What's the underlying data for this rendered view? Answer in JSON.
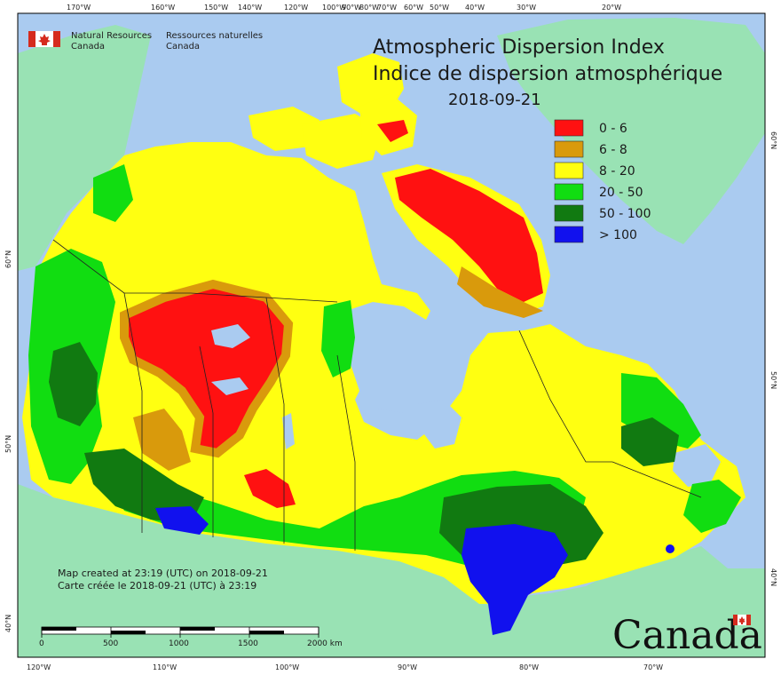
{
  "map": {
    "title_en": "Atmospheric Dispersion Index",
    "title_fr": "Indice de dispersion atmosphérique",
    "date": "2018-09-21",
    "agency_en_line1": "Natural Resources",
    "agency_en_line2": "Canada",
    "agency_fr_line1": "Ressources naturelles",
    "agency_fr_line2": "Canada",
    "created_en": "Map created at 23:19 (UTC) on 2018-09-21",
    "created_fr": "Carte créée le 2018-09-21 (UTC) à 23:19",
    "wordmark": "Canada",
    "scale_labels": [
      "0",
      "500",
      "1000",
      "1500",
      "2000 km"
    ]
  },
  "legend": [
    {
      "label": "0 - 6",
      "color": "#ff1111"
    },
    {
      "label": "6 - 8",
      "color": "#d99a0c"
    },
    {
      "label": "8 - 20",
      "color": "#ffff11"
    },
    {
      "label": "20 - 50",
      "color": "#11dd11"
    },
    {
      "label": "50 - 100",
      "color": "#117a11"
    },
    {
      "label": "> 100",
      "color": "#1111ee"
    }
  ],
  "colors": {
    "water": "#aacbf0",
    "foreign_land": "#99e2b4",
    "frame": "#000000"
  },
  "graticule": {
    "top": [
      "170°W",
      "160°W",
      "150°W",
      "140°W",
      "120°W",
      "100°W",
      "90°W",
      "80°W",
      "70°W",
      "60°W",
      "50°W",
      "40°W",
      "30°W",
      "20°W"
    ],
    "bottom": [
      "120°W",
      "110°W",
      "100°W",
      "90°W",
      "80°W",
      "70°W"
    ],
    "left": [
      "60°N",
      "50°N",
      "40°N"
    ],
    "right": [
      "60°N",
      "50°N",
      "40°N"
    ]
  }
}
